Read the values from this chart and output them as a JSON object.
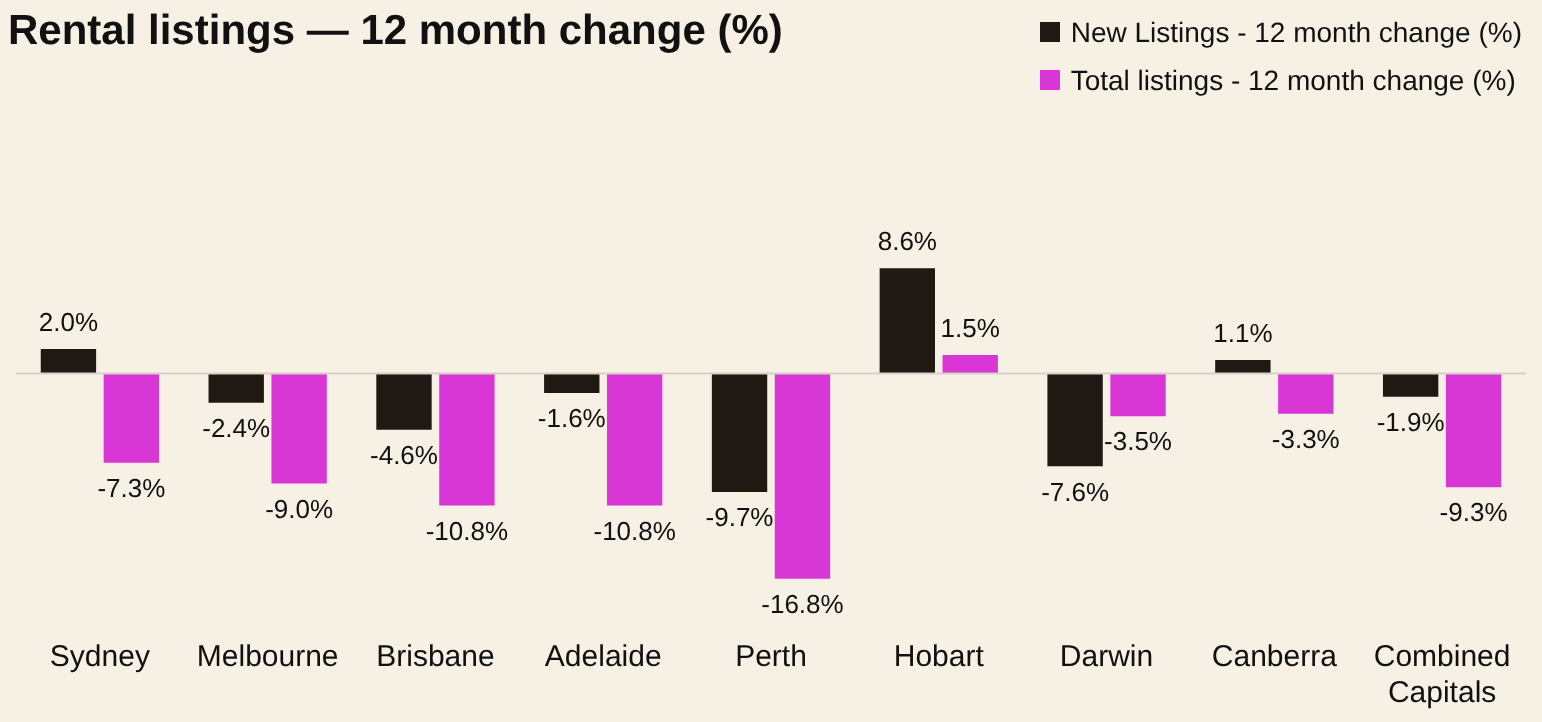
{
  "chart_data": {
    "type": "bar",
    "title": "Rental listings — 12 month change (%)",
    "categories": [
      "Sydney",
      "Melbourne",
      "Brisbane",
      "Adelaide",
      "Perth",
      "Hobart",
      "Darwin",
      "Canberra",
      "Combined Capitals"
    ],
    "legend": "top right",
    "series": [
      {
        "name": "New Listings - 12 month change (%)",
        "color": "#1e1912",
        "values": [
          2.0,
          -2.4,
          -4.6,
          -1.6,
          -9.7,
          8.6,
          -7.6,
          1.1,
          -1.9
        ],
        "value_labels": [
          "2.0%",
          "-2.4%",
          "-4.6%",
          "-1.6%",
          "-9.7%",
          "8.6%",
          "-7.6%",
          "1.1%",
          "-1.9%"
        ]
      },
      {
        "name": "Total listings - 12 month change (%)",
        "color": "#d936d6",
        "values": [
          -7.3,
          -9.0,
          -10.8,
          -10.8,
          -16.8,
          1.5,
          -3.5,
          -3.3,
          -9.3
        ],
        "value_labels": [
          "-7.3%",
          "-9.0%",
          "-10.8%",
          "-10.8%",
          "-16.8%",
          "1.5%",
          "-3.5%",
          "-3.3%",
          "-9.3%"
        ]
      }
    ]
  }
}
